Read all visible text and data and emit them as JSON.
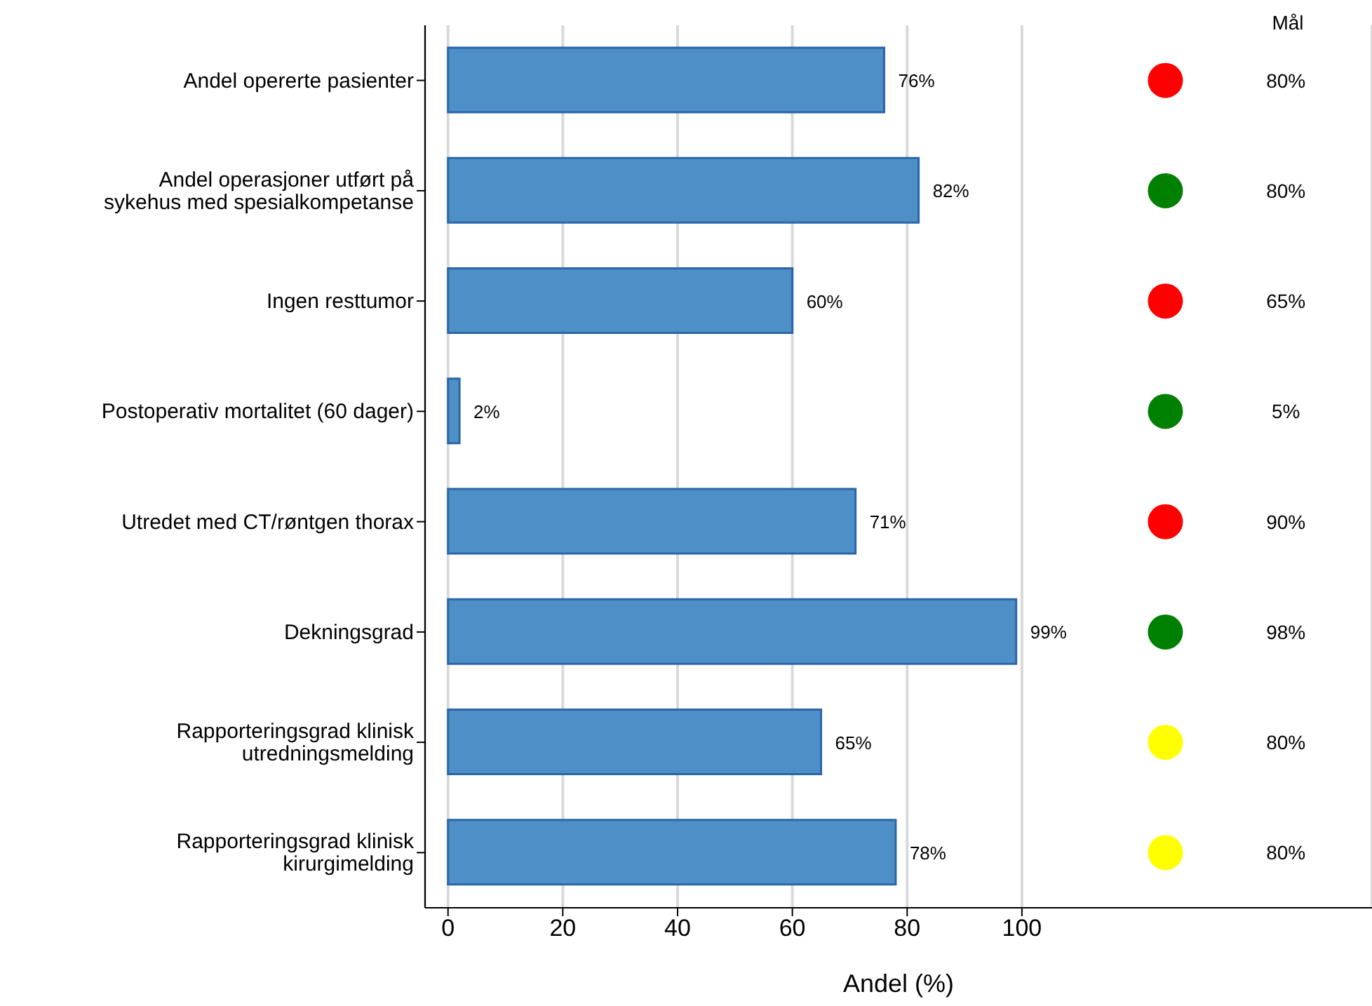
{
  "chart_data": {
    "type": "bar",
    "orientation": "horizontal",
    "xlabel": "Andel (%)",
    "categories": [
      "Andel opererte pasienter",
      "Andel operasjoner utført på\nsykehus med spesialkompetanse",
      "Ingen resttumor",
      "Postoperativ mortalitet (60 dager)",
      "Utredet med CT/røntgen thorax",
      "Dekningsgrad",
      "Rapporteringsgrad klinisk\nutredningsmelding",
      "Rapporteringsgrad klinisk\nkirurgimelding"
    ],
    "series": [
      {
        "color": "#4f8fc8",
        "values": [
          76,
          82,
          60,
          2,
          71,
          99,
          65,
          78
        ],
        "value_labels": [
          "76%",
          "82%",
          "60%",
          "2%",
          "71%",
          "99%",
          "65%",
          "78%"
        ]
      },
      {
        "type": "scatter",
        "colors": [
          "#ff0000",
          "#008000",
          "#ff0000",
          "#008000",
          "#ff0000",
          "#008000",
          "#ffff00",
          "#ffff00"
        ],
        "values": [
          125,
          125,
          125,
          125,
          125,
          125,
          125,
          125
        ]
      }
    ],
    "xlim": [
      -4,
      161
    ],
    "xticks": [
      0,
      20,
      40,
      60,
      80,
      100
    ],
    "grid": "x",
    "annotations": [
      "Mål",
      "80%",
      "80%",
      "65%",
      "5%",
      "90%",
      "98%",
      "80%",
      "80%"
    ]
  }
}
